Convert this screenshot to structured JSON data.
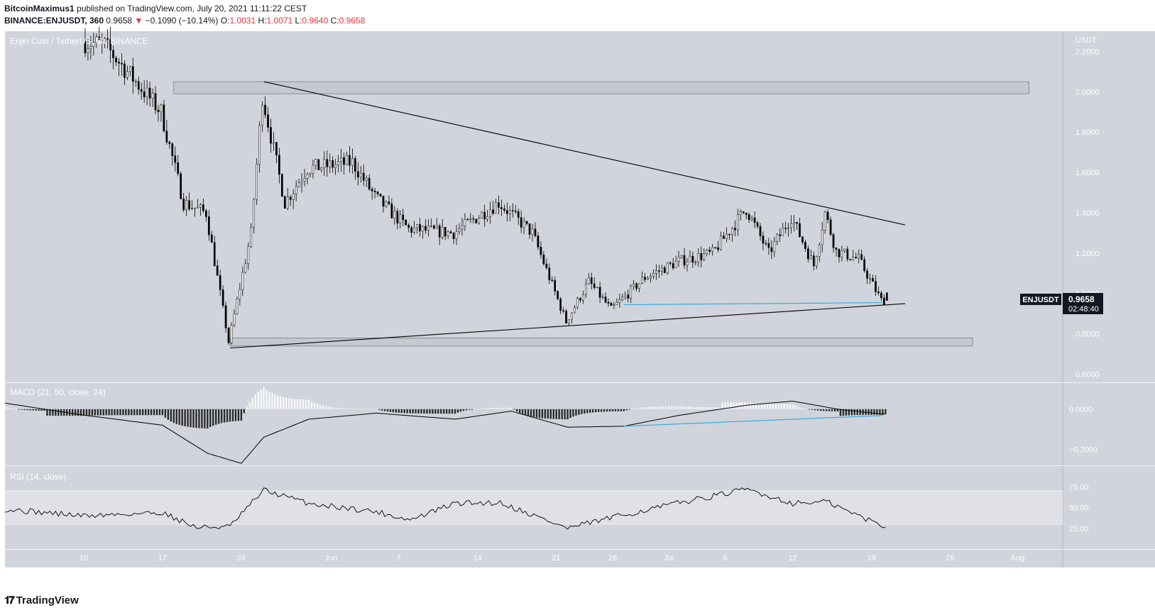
{
  "header": {
    "author": "BitcoinMaximus1",
    "published_text": "published on TradingView.com, July 20, 2021 11:11:22 CEST",
    "symbol_line": "BINANCE:ENJUSDT, 360",
    "last_price": "0.9658",
    "change_arrow": "▼",
    "change": "−0.1090 (−10.14%)",
    "o_label": "O:",
    "o_value": "1.0031",
    "h_label": "H:",
    "h_value": "1.0071",
    "l_label": "L:",
    "l_value": "0.9640",
    "c_label": "C:",
    "c_value": "0.9658"
  },
  "pane_title": "Enjin Coin / TetherUS, 6h, BINANCE",
  "price_axis_unit": "USDT",
  "price_ticks": [
    "2.2000",
    "2.0000",
    "1.8000",
    "1.6000",
    "1.4000",
    "1.2000",
    "1.0000",
    "0.8000",
    "0.6000"
  ],
  "price_label": {
    "symbol": "ENJUSDT",
    "value": "0.9658",
    "countdown": "02:48:40"
  },
  "macd": {
    "title": "MACD (21, 50, close, 24)",
    "ticks": [
      "0.0000",
      "−0.2000"
    ]
  },
  "rsi": {
    "title": "RSI (14, close)",
    "ticks": [
      "75.00",
      "50.00",
      "25.00"
    ]
  },
  "time_ticks": [
    "10",
    "17",
    "24",
    "Jun",
    "7",
    "14",
    "21",
    "26",
    "Jul",
    "6",
    "12",
    "19",
    "26",
    "Aug"
  ],
  "footer": {
    "brand": "TradingView"
  },
  "colors": {
    "pane_bg": "#d1d4dc",
    "candle_up": "#ffffff",
    "candle_down": "#000000",
    "trend_line": "#000000",
    "support_line": "#29a9e0",
    "zone_fill": "#c4c7ce",
    "rsi_band": "#dfe1e6",
    "down_red": "#e0373c"
  },
  "chart_data": {
    "type": "candlestick",
    "title": "Enjin Coin / TetherUS, 6h, BINANCE",
    "y_unit": "USDT",
    "ylim": [
      0.56,
      2.3
    ],
    "x_range": [
      "2021-05-03",
      "2021-08-05"
    ],
    "last": {
      "open": 1.0031,
      "high": 1.0071,
      "low": 0.964,
      "close": 0.9658
    },
    "anchor_points": [
      {
        "date": "2021-05-10",
        "price": 2.25
      },
      {
        "date": "2021-05-12",
        "price": 2.23
      },
      {
        "date": "2021-05-14",
        "price": 2.1
      },
      {
        "date": "2021-05-17",
        "price": 1.9
      },
      {
        "date": "2021-05-19",
        "price": 1.45
      },
      {
        "date": "2021-05-21",
        "price": 1.4
      },
      {
        "date": "2021-05-23",
        "price": 0.76
      },
      {
        "date": "2021-05-25",
        "price": 1.3
      },
      {
        "date": "2021-05-26",
        "price": 1.98
      },
      {
        "date": "2021-05-28",
        "price": 1.45
      },
      {
        "date": "2021-05-30",
        "price": 1.62
      },
      {
        "date": "2021-06-03",
        "price": 1.65
      },
      {
        "date": "2021-06-05",
        "price": 1.48
      },
      {
        "date": "2021-06-08",
        "price": 1.32
      },
      {
        "date": "2021-06-12",
        "price": 1.3
      },
      {
        "date": "2021-06-16",
        "price": 1.45
      },
      {
        "date": "2021-06-19",
        "price": 1.3
      },
      {
        "date": "2021-06-22",
        "price": 0.86
      },
      {
        "date": "2021-06-24",
        "price": 1.06
      },
      {
        "date": "2021-06-26",
        "price": 0.92
      },
      {
        "date": "2021-06-29",
        "price": 1.08
      },
      {
        "date": "2021-07-02",
        "price": 1.16
      },
      {
        "date": "2021-07-05",
        "price": 1.2
      },
      {
        "date": "2021-07-08",
        "price": 1.42
      },
      {
        "date": "2021-07-10",
        "price": 1.2
      },
      {
        "date": "2021-07-12",
        "price": 1.38
      },
      {
        "date": "2021-07-14",
        "price": 1.14
      },
      {
        "date": "2021-07-15",
        "price": 1.4
      },
      {
        "date": "2021-07-16",
        "price": 1.21
      },
      {
        "date": "2021-07-18",
        "price": 1.17
      },
      {
        "date": "2021-07-20",
        "price": 0.9658
      }
    ],
    "horizontal_zones": [
      {
        "from_date": "2021-05-18",
        "to_date": "2021-08-02",
        "low": 1.99,
        "high": 2.05
      },
      {
        "from_date": "2021-05-23",
        "to_date": "2021-07-28",
        "low": 0.74,
        "high": 0.78
      }
    ],
    "trendlines": [
      {
        "name": "resistance",
        "from": {
          "date": "2021-05-26",
          "price": 2.05
        },
        "to": {
          "date": "2021-07-22",
          "price": 1.34
        }
      },
      {
        "name": "support",
        "from": {
          "date": "2021-05-23",
          "price": 0.73
        },
        "to": {
          "date": "2021-07-22",
          "price": 0.95
        }
      },
      {
        "name": "flat-support",
        "from": {
          "date": "2021-06-27",
          "price": 0.945
        },
        "to": {
          "date": "2021-07-20",
          "price": 0.955
        }
      }
    ],
    "macd": {
      "params": "21, 50, close, 24",
      "ylim": [
        -0.28,
        0.13
      ],
      "line_points": [
        {
          "date": "2021-05-03",
          "value": 0.03
        },
        {
          "date": "2021-05-10",
          "value": -0.03
        },
        {
          "date": "2021-05-17",
          "value": -0.08
        },
        {
          "date": "2021-05-21",
          "value": -0.22
        },
        {
          "date": "2021-05-24",
          "value": -0.27
        },
        {
          "date": "2021-05-26",
          "value": -0.14
        },
        {
          "date": "2021-05-30",
          "value": -0.05
        },
        {
          "date": "2021-06-05",
          "value": -0.02
        },
        {
          "date": "2021-06-12",
          "value": -0.05
        },
        {
          "date": "2021-06-17",
          "value": -0.01
        },
        {
          "date": "2021-06-22",
          "value": -0.09
        },
        {
          "date": "2021-06-27",
          "value": -0.085
        },
        {
          "date": "2021-07-02",
          "value": -0.03
        },
        {
          "date": "2021-07-08",
          "value": 0.02
        },
        {
          "date": "2021-07-12",
          "value": 0.04
        },
        {
          "date": "2021-07-16",
          "value": 0.0
        },
        {
          "date": "2021-07-20",
          "value": -0.025
        }
      ],
      "histogram_note": "bars show momentum: dark below zero, light above zero"
    },
    "rsi": {
      "params": "14, close",
      "ylim": [
        0,
        100
      ],
      "bands": [
        30,
        70
      ],
      "line_points": [
        {
          "date": "2021-05-03",
          "value": 48
        },
        {
          "date": "2021-05-10",
          "value": 40
        },
        {
          "date": "2021-05-17",
          "value": 44
        },
        {
          "date": "2021-05-20",
          "value": 26
        },
        {
          "date": "2021-05-23",
          "value": 27
        },
        {
          "date": "2021-05-26",
          "value": 71
        },
        {
          "date": "2021-05-30",
          "value": 55
        },
        {
          "date": "2021-06-05",
          "value": 45
        },
        {
          "date": "2021-06-08",
          "value": 35
        },
        {
          "date": "2021-06-12",
          "value": 55
        },
        {
          "date": "2021-06-16",
          "value": 56
        },
        {
          "date": "2021-06-22",
          "value": 25
        },
        {
          "date": "2021-06-26",
          "value": 38
        },
        {
          "date": "2021-07-02",
          "value": 56
        },
        {
          "date": "2021-07-08",
          "value": 72
        },
        {
          "date": "2021-07-12",
          "value": 55
        },
        {
          "date": "2021-07-15",
          "value": 57
        },
        {
          "date": "2021-07-17",
          "value": 45
        },
        {
          "date": "2021-07-20",
          "value": 28
        }
      ]
    }
  }
}
